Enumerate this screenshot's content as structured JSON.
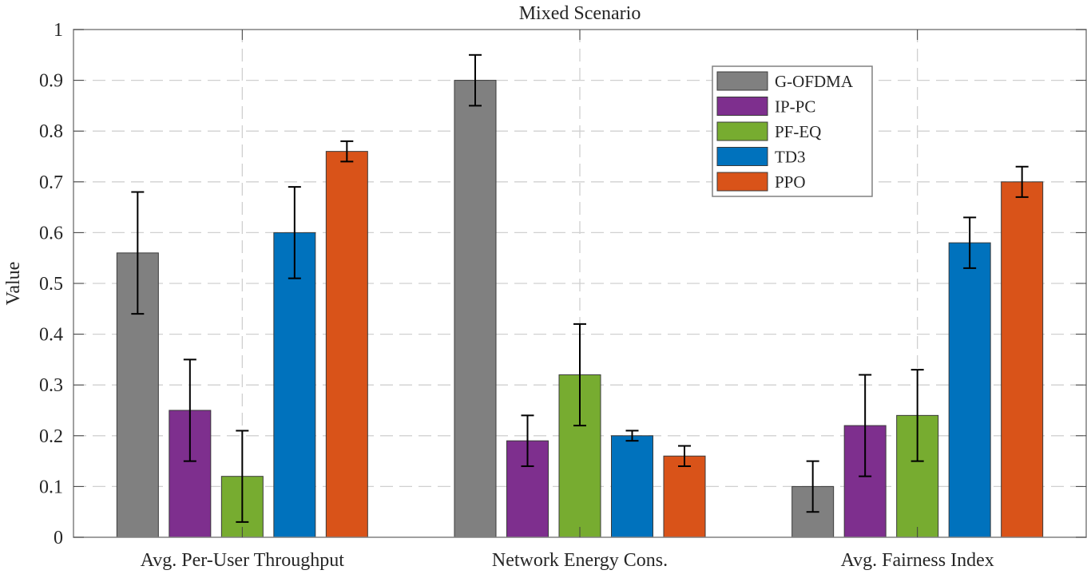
{
  "chart_data": {
    "type": "bar",
    "title": "Mixed Scenario",
    "xlabel": "",
    "ylabel": "Value",
    "ylim": [
      0,
      1
    ],
    "yticks": [
      "0",
      "0.1",
      "0.2",
      "0.3",
      "0.4",
      "0.5",
      "0.6",
      "0.7",
      "0.8",
      "0.9",
      "1"
    ],
    "ytick_values": [
      0,
      0.1,
      0.2,
      0.3,
      0.4,
      0.5,
      0.6,
      0.7,
      0.8,
      0.9,
      1.0
    ],
    "grid": true,
    "legend_position": "top-right-of-center",
    "categories": [
      "Avg. Per-User Throughput",
      "Network Energy Cons.",
      "Avg. Fairness Index"
    ],
    "series": [
      {
        "name": "G-OFDMA",
        "color": "#808080",
        "values": [
          0.56,
          0.9,
          0.1
        ],
        "errors": [
          0.12,
          0.05,
          0.05
        ]
      },
      {
        "name": "IP-PC",
        "color": "#7E2F8E",
        "values": [
          0.25,
          0.19,
          0.22
        ],
        "errors": [
          0.1,
          0.05,
          0.1
        ]
      },
      {
        "name": "PF-EQ",
        "color": "#77AC30",
        "values": [
          0.12,
          0.32,
          0.24
        ],
        "errors": [
          0.09,
          0.1,
          0.09
        ]
      },
      {
        "name": "TD3",
        "color": "#0072BD",
        "values": [
          0.6,
          0.2,
          0.58
        ],
        "errors": [
          0.09,
          0.01,
          0.05
        ]
      },
      {
        "name": "PPO",
        "color": "#D95319",
        "values": [
          0.76,
          0.16,
          0.7
        ],
        "errors": [
          0.02,
          0.02,
          0.03
        ]
      }
    ]
  }
}
